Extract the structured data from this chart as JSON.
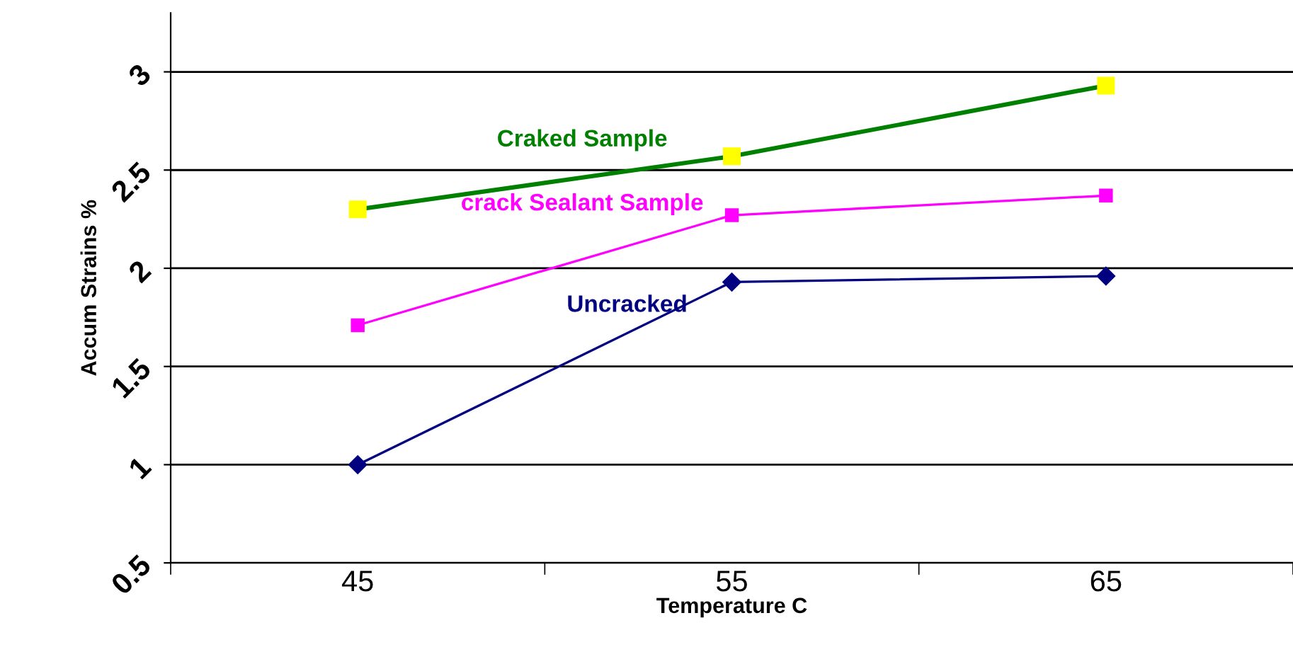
{
  "chart_data": {
    "type": "line",
    "xlabel": "Temperature C",
    "ylabel": "Accum Strains %",
    "categories": [
      "45",
      "55",
      "65"
    ],
    "series": [
      {
        "name": "Craked Sample",
        "color": "#008000",
        "values": [
          2.3,
          2.57,
          2.93
        ],
        "marker": "square"
      },
      {
        "name": "crack Sealant Sample",
        "color": "#ff00ff",
        "values": [
          1.71,
          2.27,
          2.37
        ],
        "marker": "square"
      },
      {
        "name": "Uncracked",
        "color": "#000080",
        "values": [
          1.0,
          1.93,
          1.96
        ],
        "marker": "diamond"
      }
    ],
    "ylim": [
      0.5,
      3.3
    ],
    "yticks": [
      0.5,
      1,
      1.5,
      2,
      2.5,
      3
    ],
    "grid": "y",
    "legend": false
  }
}
